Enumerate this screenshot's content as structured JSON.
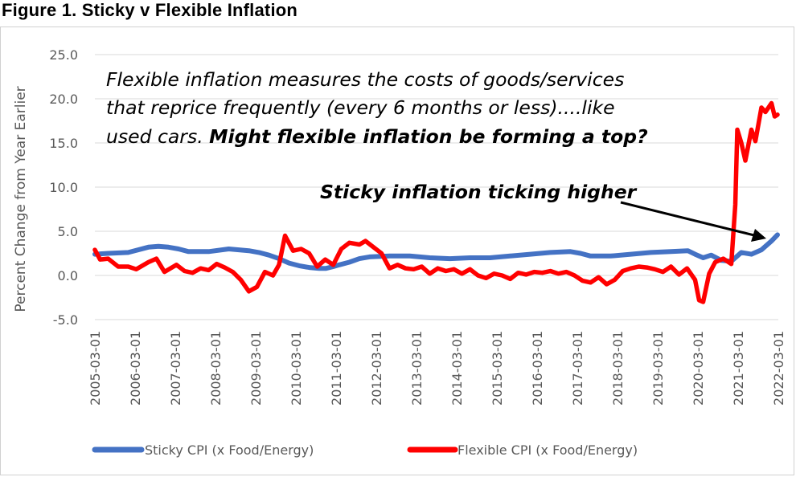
{
  "figure_title": "Figure 1. Sticky v Flexible Inflation",
  "colors": {
    "sticky": "#4472C4",
    "flexible": "#FF0000",
    "gridline": "#d9d9d9",
    "text": "#595959"
  },
  "chart_data": {
    "type": "line",
    "title": "Figure 1. Sticky v Flexible Inflation",
    "ylabel": "Percent Change from Year Earlier",
    "xlabel": "",
    "ylim": [
      -5,
      25
    ],
    "yticks": [
      "25.0",
      "20.0",
      "15.0",
      "10.0",
      "5.0",
      "0.0",
      "-5.0"
    ],
    "ytick_values": [
      25,
      20,
      15,
      10,
      5,
      0,
      -5
    ],
    "xticks": [
      "2005-03-01",
      "2006-03-01",
      "2007-03-01",
      "2008-03-01",
      "2009-03-01",
      "2010-03-01",
      "2011-03-01",
      "2012-03-01",
      "2013-03-01",
      "2014-03-01",
      "2015-03-01",
      "2016-03-01",
      "2017-03-01",
      "2018-03-01",
      "2019-03-01",
      "2020-03-01",
      "2021-03-01",
      "2022-03-01"
    ],
    "grid": true,
    "legend_position": "bottom",
    "annotation_text": {
      "line1": "Flexible inflation measures the costs of goods/services",
      "line2": "that reprice frequently (every 6 months or less)....like",
      "line3_plain": "used cars. ",
      "line3_bold": "Might flexible inflation be forming a top?",
      "arrow_label": "Sticky inflation ticking higher"
    },
    "series": [
      {
        "name": "Sticky CPI (x Food/Energy)",
        "x": [
          2005.17,
          2005.5,
          2006.0,
          2006.5,
          2006.75,
          2007.0,
          2007.25,
          2007.5,
          2008.0,
          2008.5,
          2008.75,
          2009.0,
          2009.25,
          2009.5,
          2009.75,
          2010.0,
          2010.25,
          2010.5,
          2010.75,
          2010.92,
          2011.1,
          2011.25,
          2011.5,
          2011.75,
          2012.0,
          2012.5,
          2013.0,
          2013.5,
          2014.0,
          2014.5,
          2015.0,
          2015.5,
          2016.0,
          2016.5,
          2017.0,
          2017.25,
          2017.5,
          2018.0,
          2018.5,
          2019.0,
          2019.5,
          2019.92,
          2020.1,
          2020.3,
          2020.5,
          2020.75,
          2021.0,
          2021.25,
          2021.5,
          2021.75,
          2022.0,
          2022.15
        ],
        "values": [
          2.4,
          2.5,
          2.6,
          3.2,
          3.3,
          3.2,
          3.0,
          2.7,
          2.7,
          3.0,
          2.9,
          2.8,
          2.6,
          2.3,
          1.9,
          1.4,
          1.1,
          0.9,
          0.8,
          0.8,
          1.0,
          1.2,
          1.5,
          1.9,
          2.1,
          2.2,
          2.2,
          2.0,
          1.9,
          2.0,
          2.0,
          2.2,
          2.4,
          2.6,
          2.7,
          2.5,
          2.2,
          2.2,
          2.4,
          2.6,
          2.7,
          2.8,
          2.4,
          2.0,
          2.3,
          1.7,
          1.6,
          2.6,
          2.4,
          2.9,
          3.9,
          4.6
        ]
      },
      {
        "name": "Flexible CPI (x Food/Energy)",
        "x": [
          2005.17,
          2005.3,
          2005.5,
          2005.75,
          2006.0,
          2006.2,
          2006.5,
          2006.7,
          2006.9,
          2007.2,
          2007.4,
          2007.6,
          2007.8,
          2008.0,
          2008.2,
          2008.4,
          2008.6,
          2008.8,
          2009.0,
          2009.2,
          2009.4,
          2009.6,
          2009.75,
          2009.9,
          2010.1,
          2010.3,
          2010.5,
          2010.7,
          2010.9,
          2011.1,
          2011.3,
          2011.5,
          2011.75,
          2011.9,
          2012.1,
          2012.3,
          2012.5,
          2012.7,
          2012.9,
          2013.1,
          2013.3,
          2013.5,
          2013.7,
          2013.9,
          2014.1,
          2014.3,
          2014.5,
          2014.7,
          2014.9,
          2015.1,
          2015.3,
          2015.5,
          2015.7,
          2015.9,
          2016.1,
          2016.3,
          2016.5,
          2016.7,
          2016.9,
          2017.1,
          2017.3,
          2017.5,
          2017.7,
          2017.9,
          2018.1,
          2018.3,
          2018.5,
          2018.7,
          2018.9,
          2019.1,
          2019.3,
          2019.5,
          2019.7,
          2019.9,
          2020.1,
          2020.2,
          2020.3,
          2020.45,
          2020.6,
          2020.8,
          2021.0,
          2021.1,
          2021.15,
          2021.25,
          2021.35,
          2021.5,
          2021.6,
          2021.75,
          2021.85,
          2022.0,
          2022.08,
          2022.15
        ],
        "values": [
          2.9,
          1.8,
          1.9,
          1.0,
          1.0,
          0.7,
          1.5,
          1.9,
          0.4,
          1.2,
          0.5,
          0.3,
          0.8,
          0.6,
          1.3,
          0.9,
          0.4,
          -0.5,
          -1.8,
          -1.3,
          0.4,
          0.0,
          1.2,
          4.5,
          2.8,
          3.0,
          2.5,
          1.0,
          1.8,
          1.2,
          3.0,
          3.7,
          3.5,
          3.9,
          3.2,
          2.5,
          0.8,
          1.2,
          0.8,
          0.7,
          1.0,
          0.2,
          0.8,
          0.5,
          0.7,
          0.2,
          0.7,
          0.0,
          -0.3,
          0.2,
          0.0,
          -0.4,
          0.3,
          0.1,
          0.4,
          0.3,
          0.5,
          0.2,
          0.4,
          0.0,
          -0.6,
          -0.8,
          -0.2,
          -1.0,
          -0.5,
          0.5,
          0.8,
          1.0,
          0.9,
          0.7,
          0.4,
          1.0,
          0.1,
          0.8,
          -0.5,
          -2.8,
          -3.0,
          0.2,
          1.5,
          1.9,
          1.3,
          8.0,
          16.5,
          15.0,
          13.0,
          16.5,
          15.2,
          19.0,
          18.5,
          19.5,
          18.0,
          18.2
        ]
      }
    ]
  }
}
